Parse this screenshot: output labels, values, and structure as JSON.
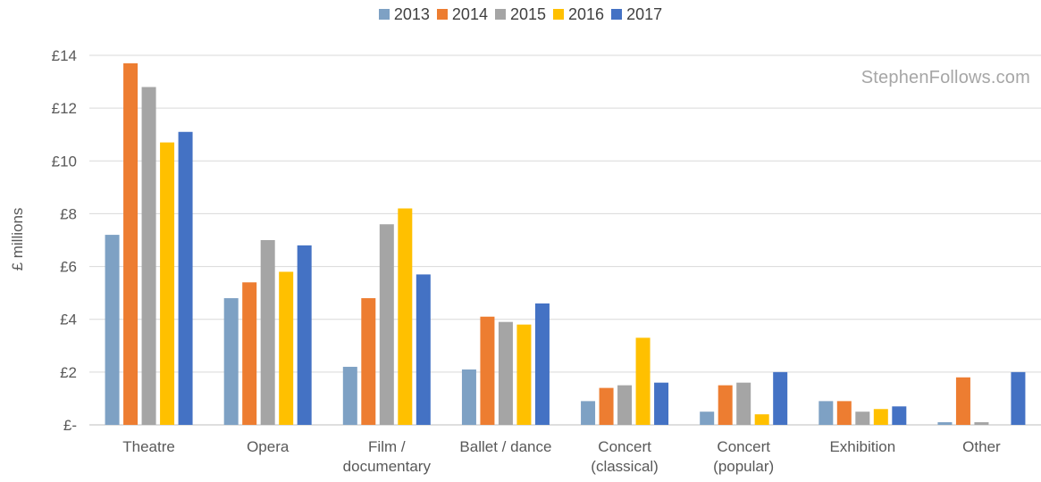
{
  "chart_data": {
    "type": "bar",
    "title": "",
    "xlabel": "",
    "ylabel": "£ millions",
    "ylim": [
      0,
      14
    ],
    "yticks": [
      {
        "value": 0,
        "label": "£-"
      },
      {
        "value": 2,
        "label": "£2"
      },
      {
        "value": 4,
        "label": "£4"
      },
      {
        "value": 6,
        "label": "£6"
      },
      {
        "value": 8,
        "label": "£8"
      },
      {
        "value": 10,
        "label": "£10"
      },
      {
        "value": 12,
        "label": "£12"
      },
      {
        "value": 14,
        "label": "£14"
      }
    ],
    "grid": true,
    "legend_position": "top",
    "categories": [
      [
        "Theatre"
      ],
      [
        "Opera"
      ],
      [
        "Film /",
        "documentary"
      ],
      [
        "Ballet / dance"
      ],
      [
        "Concert",
        "(classical)"
      ],
      [
        "Concert",
        "(popular)"
      ],
      [
        "Exhibition"
      ],
      [
        "Other"
      ]
    ],
    "series": [
      {
        "name": "2013",
        "color": "#7ea1c4",
        "values": [
          7.2,
          4.8,
          2.2,
          2.1,
          0.9,
          0.5,
          0.9,
          0.1
        ]
      },
      {
        "name": "2014",
        "color": "#ed7d31",
        "values": [
          13.7,
          5.4,
          4.8,
          4.1,
          1.4,
          1.5,
          0.9,
          1.8
        ]
      },
      {
        "name": "2015",
        "color": "#a5a5a5",
        "values": [
          12.8,
          7.0,
          7.6,
          3.9,
          1.5,
          1.6,
          0.5,
          0.1
        ]
      },
      {
        "name": "2016",
        "color": "#ffc000",
        "values": [
          10.7,
          5.8,
          8.2,
          3.8,
          3.3,
          0.4,
          0.6,
          0.0
        ]
      },
      {
        "name": "2017",
        "color": "#4472c4",
        "values": [
          11.1,
          6.8,
          5.7,
          4.6,
          1.6,
          2.0,
          0.7,
          2.0
        ]
      }
    ]
  },
  "watermark": "StephenFollows.com"
}
